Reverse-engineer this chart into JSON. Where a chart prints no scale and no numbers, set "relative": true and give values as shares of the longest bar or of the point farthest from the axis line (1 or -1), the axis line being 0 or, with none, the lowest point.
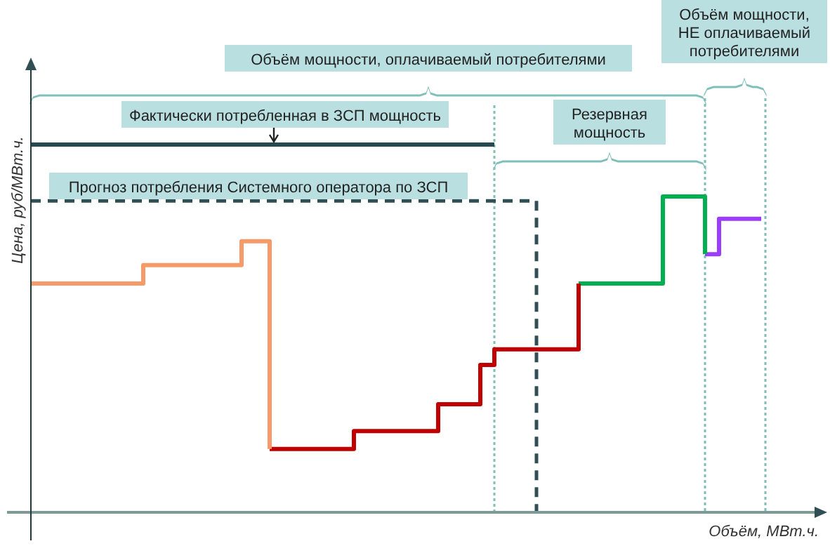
{
  "chart_data": {
    "type": "step",
    "relative": true,
    "xlabel": "Объём, МВт.ч.",
    "ylabel": "Цена, руб/МВт.ч.",
    "legend": false,
    "marker": "none",
    "grid": false,
    "tick_labels": false,
    "categories": [
      null,
      null,
      null,
      null,
      null,
      null,
      null,
      null,
      null,
      null,
      null,
      null,
      null,
      null,
      null,
      null,
      null,
      null,
      null,
      null,
      null,
      null,
      null,
      null,
      null,
      null,
      null,
      null,
      null,
      null,
      null,
      null,
      null,
      null,
      null,
      null,
      null,
      null,
      null,
      null,
      null,
      null,
      null,
      null,
      null,
      null,
      null,
      null,
      null,
      null,
      null,
      null,
      null,
      null,
      null,
      null
    ],
    "series": [
      {
        "color": "#274a50",
        "line_style": "solid",
        "values": [
          1,
          1,
          1,
          1,
          1,
          1,
          1,
          1,
          1,
          1,
          1,
          1,
          1,
          1,
          1,
          1,
          1,
          1,
          1,
          1,
          1,
          1,
          1,
          1,
          1,
          1,
          1,
          1,
          1,
          1,
          1,
          1,
          1,
          1,
          null,
          null,
          null,
          null,
          null,
          null,
          null,
          null,
          null,
          null,
          null,
          null,
          null,
          null,
          null,
          null,
          null,
          null,
          null,
          null,
          null,
          null
        ]
      },
      {
        "color": "#2f4f55",
        "line_style": "dashed",
        "values": [
          0.847,
          0.847,
          0.847,
          0.847,
          0.847,
          0.847,
          0.847,
          0.847,
          0.847,
          0.847,
          0.847,
          0.847,
          0.847,
          0.847,
          0.847,
          0.847,
          0.847,
          0.847,
          0.847,
          0.847,
          0.847,
          0.847,
          0.847,
          0.847,
          0.847,
          0.847,
          0.847,
          0.847,
          0.847,
          0.847,
          0.847,
          0.847,
          0.847,
          0.847,
          0.847,
          0.847,
          0,
          null,
          null,
          null,
          null,
          null,
          null,
          null,
          null,
          null,
          null,
          null,
          null,
          null,
          null,
          null,
          null,
          null,
          null,
          null
        ]
      },
      {
        "color": "#f79a6a",
        "line_style": "solid",
        "values": [
          0.622,
          0.622,
          0.622,
          0.622,
          0.622,
          0.622,
          0.622,
          0.622,
          0.672,
          0.672,
          0.672,
          0.672,
          0.672,
          0.672,
          0.672,
          0.737,
          0.737,
          0.172,
          null,
          null,
          null,
          null,
          null,
          null,
          null,
          null,
          null,
          null,
          null,
          null,
          null,
          null,
          null,
          null,
          null,
          null,
          null,
          null,
          null,
          null,
          null,
          null,
          null,
          null,
          null,
          null,
          null,
          null,
          null,
          null,
          null,
          null,
          null,
          null,
          null,
          null
        ]
      },
      {
        "color": "#c00000",
        "line_style": "solid",
        "values": [
          null,
          null,
          null,
          null,
          null,
          null,
          null,
          null,
          null,
          null,
          null,
          null,
          null,
          null,
          null,
          null,
          null,
          0.172,
          0.172,
          0.172,
          0.172,
          0.172,
          0.172,
          0.221,
          0.221,
          0.221,
          0.221,
          0.221,
          0.221,
          0.294,
          0.294,
          0.294,
          0.401,
          0.443,
          0.443,
          0.443,
          0.443,
          0.443,
          0.443,
          0.622,
          null,
          null,
          null,
          null,
          null,
          null,
          null,
          null,
          null,
          null,
          null,
          null,
          null,
          null,
          null,
          null
        ]
      },
      {
        "color": "#00b050",
        "line_style": "solid",
        "values": [
          null,
          null,
          null,
          null,
          null,
          null,
          null,
          null,
          null,
          null,
          null,
          null,
          null,
          null,
          null,
          null,
          null,
          null,
          null,
          null,
          null,
          null,
          null,
          null,
          null,
          null,
          null,
          null,
          null,
          null,
          null,
          null,
          null,
          null,
          null,
          null,
          null,
          null,
          null,
          0.622,
          0.622,
          0.622,
          0.622,
          0.622,
          0.622,
          0.859,
          0.859,
          0.859,
          0.702,
          null,
          null,
          null,
          null,
          null,
          null,
          null
        ]
      },
      {
        "color": "#9b3cff",
        "line_style": "solid",
        "values": [
          null,
          null,
          null,
          null,
          null,
          null,
          null,
          null,
          null,
          null,
          null,
          null,
          null,
          null,
          null,
          null,
          null,
          null,
          null,
          null,
          null,
          null,
          null,
          null,
          null,
          null,
          null,
          null,
          null,
          null,
          null,
          null,
          null,
          null,
          null,
          null,
          null,
          null,
          null,
          null,
          null,
          null,
          null,
          null,
          null,
          null,
          null,
          null,
          0.702,
          0.798,
          0.798,
          0.798,
          0.798,
          null,
          null,
          null
        ]
      }
    ],
    "annotations": [
      "Объём мощности, оплачиваемый потребителями",
      "Фактически потребленная в ЗСП мощность",
      "Прогноз потребления Системного оператора по ЗСП",
      "Резервная мощность",
      "Объём мощности, НЕ оплачиваемый потребителями"
    ]
  }
}
